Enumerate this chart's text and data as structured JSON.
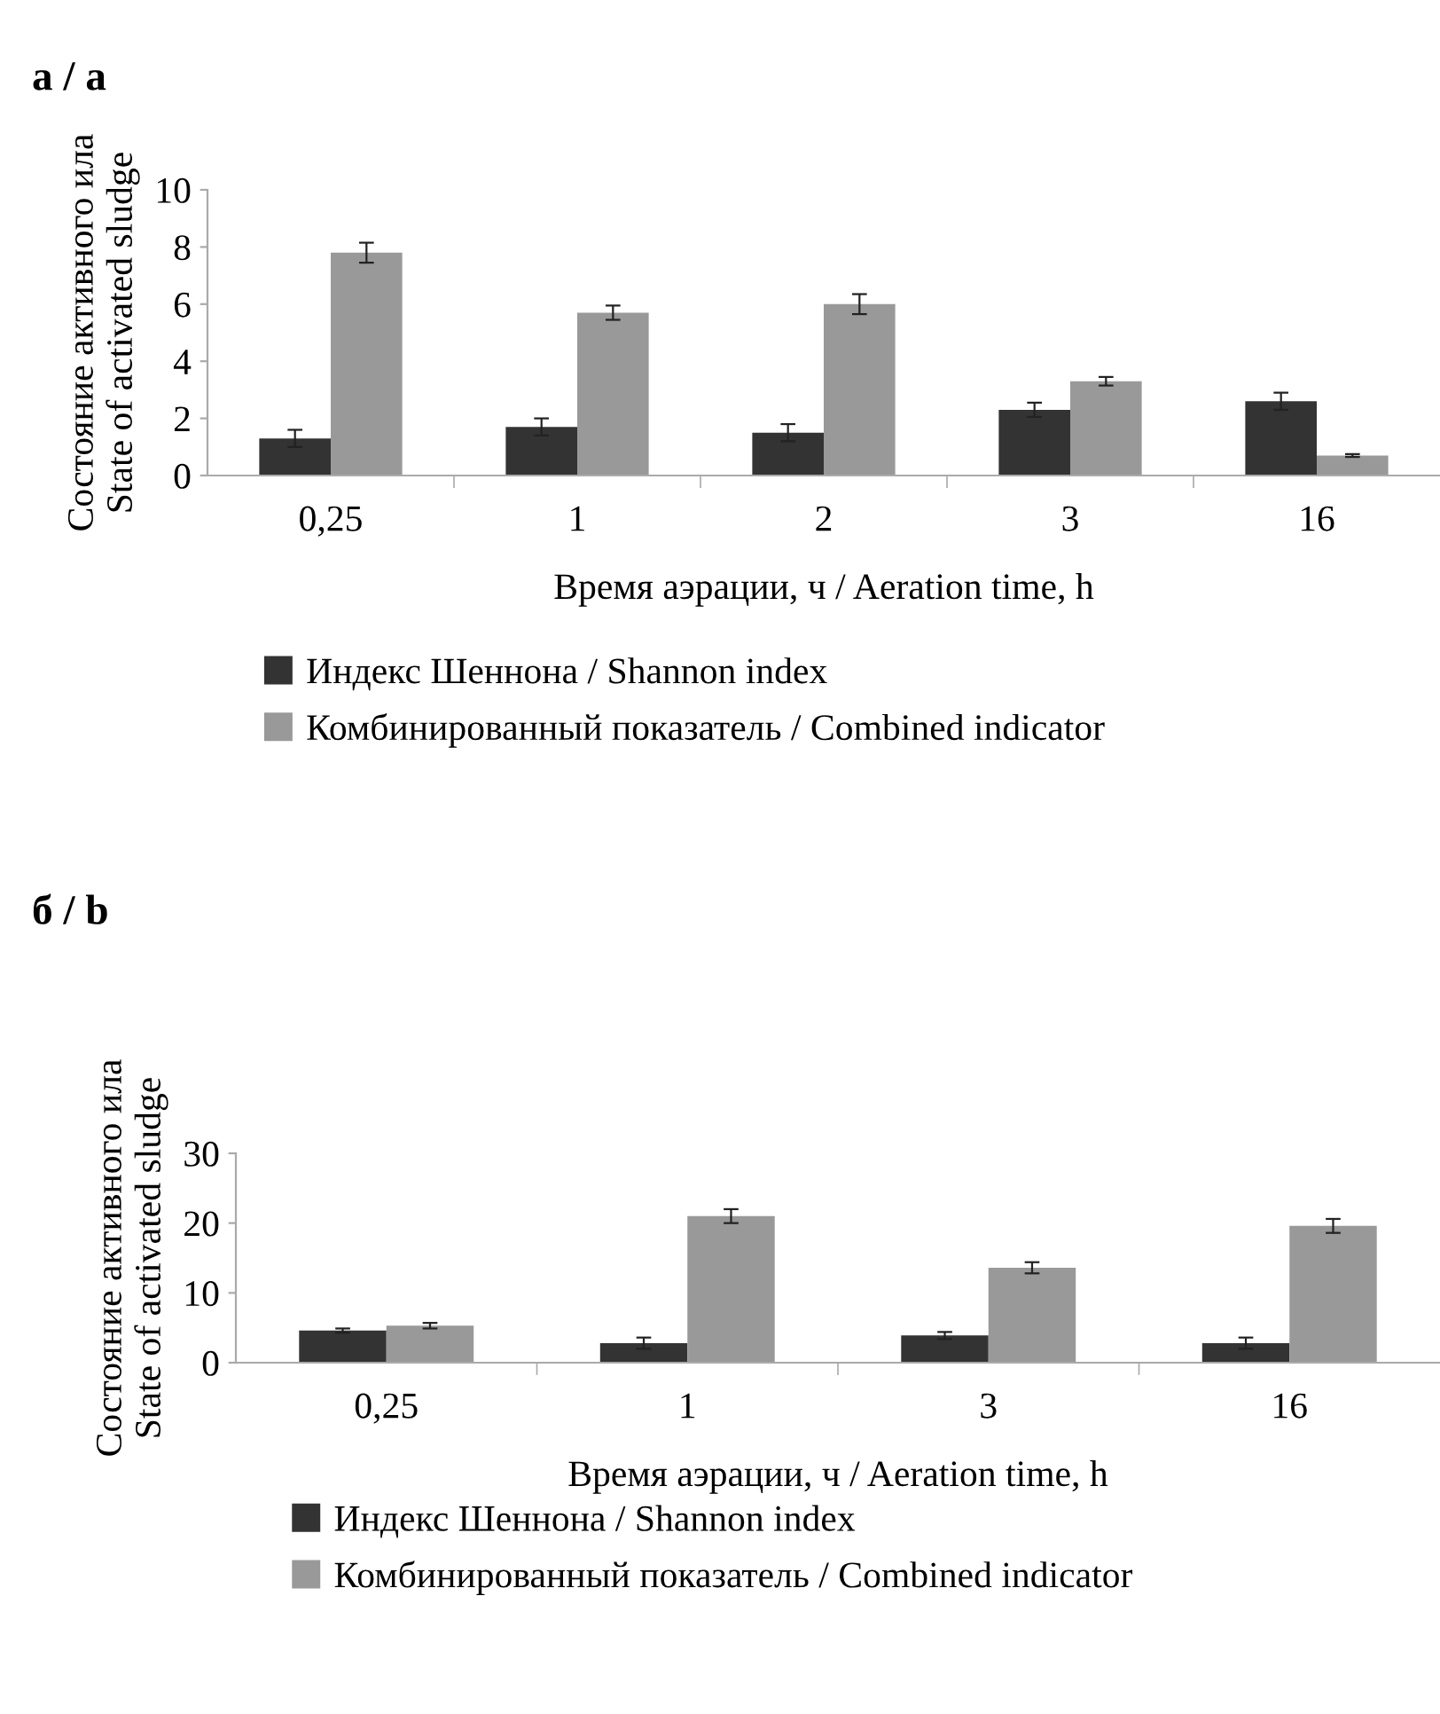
{
  "chart_data": [
    {
      "type": "bar",
      "title": "а / a",
      "xlabel": "Время аэрации, ч / Aeration time, h",
      "ylabel": "Состояние активного ила\nState of activated sludge",
      "categories": [
        "0,25",
        "1",
        "2",
        "3",
        "16"
      ],
      "ylim": [
        0,
        10
      ],
      "yticks": [
        0,
        2,
        4,
        6,
        8,
        10
      ],
      "legend": "bottom",
      "grid": false,
      "series": [
        {
          "name": "Индекс Шеннона / Shannon index",
          "color": "#333333",
          "values": [
            1.3,
            1.7,
            1.5,
            2.3,
            2.6
          ],
          "errors": [
            0.3,
            0.3,
            0.3,
            0.25,
            0.3
          ]
        },
        {
          "name": "Комбинированный показатель / Combined indicator",
          "color": "#999999",
          "values": [
            7.8,
            5.7,
            6.0,
            3.3,
            0.7
          ],
          "errors": [
            0.35,
            0.25,
            0.35,
            0.15,
            0.05
          ]
        }
      ]
    },
    {
      "type": "bar",
      "title": "б / b",
      "xlabel": "Время аэрации, ч / Aeration time, h",
      "ylabel": "Состояние активного ила\nState of activated sludge",
      "categories": [
        "0,25",
        "1",
        "3",
        "16"
      ],
      "ylim": [
        0,
        30
      ],
      "yticks": [
        0,
        10,
        20,
        30
      ],
      "legend": "bottom",
      "grid": false,
      "series": [
        {
          "name": "Индекс Шеннона / Shannon index",
          "color": "#333333",
          "values": [
            4.6,
            2.8,
            3.9,
            2.8
          ],
          "errors": [
            0.3,
            0.8,
            0.5,
            0.8
          ]
        },
        {
          "name": "Комбинированный показатель / Combined indicator",
          "color": "#999999",
          "values": [
            5.3,
            21.0,
            13.6,
            19.6
          ],
          "errors": [
            0.4,
            1.0,
            0.8,
            1.0
          ]
        }
      ]
    }
  ]
}
